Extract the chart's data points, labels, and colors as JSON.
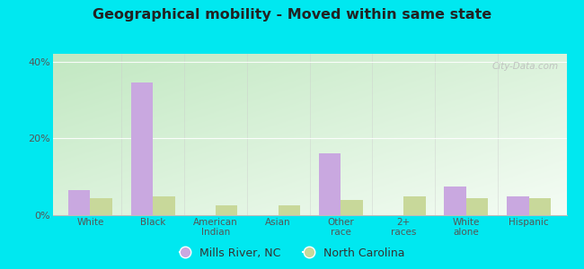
{
  "title": "Geographical mobility - Moved within same state",
  "categories": [
    "White",
    "Black",
    "American\nIndian",
    "Asian",
    "Other\nrace",
    "2+\nraces",
    "White\nalone",
    "Hispanic"
  ],
  "mills_river": [
    6.5,
    34.5,
    0.0,
    0.0,
    16.0,
    0.0,
    7.5,
    5.0
  ],
  "north_carolina": [
    4.5,
    5.0,
    2.5,
    2.5,
    4.0,
    5.0,
    4.5,
    4.5
  ],
  "mills_color": "#c9a8e0",
  "nc_color": "#c8d89a",
  "ylim": [
    0,
    42
  ],
  "yticks": [
    0,
    20,
    40
  ],
  "ytick_labels": [
    "0%",
    "20%",
    "40%"
  ],
  "outer_bg": "#00e8f0",
  "bar_width": 0.35,
  "legend_labels": [
    "Mills River, NC",
    "North Carolina"
  ],
  "watermark": "City-Data.com",
  "bg_color_bottom_left": "#c2e8c2",
  "bg_color_top_right": "#f5fdf5"
}
